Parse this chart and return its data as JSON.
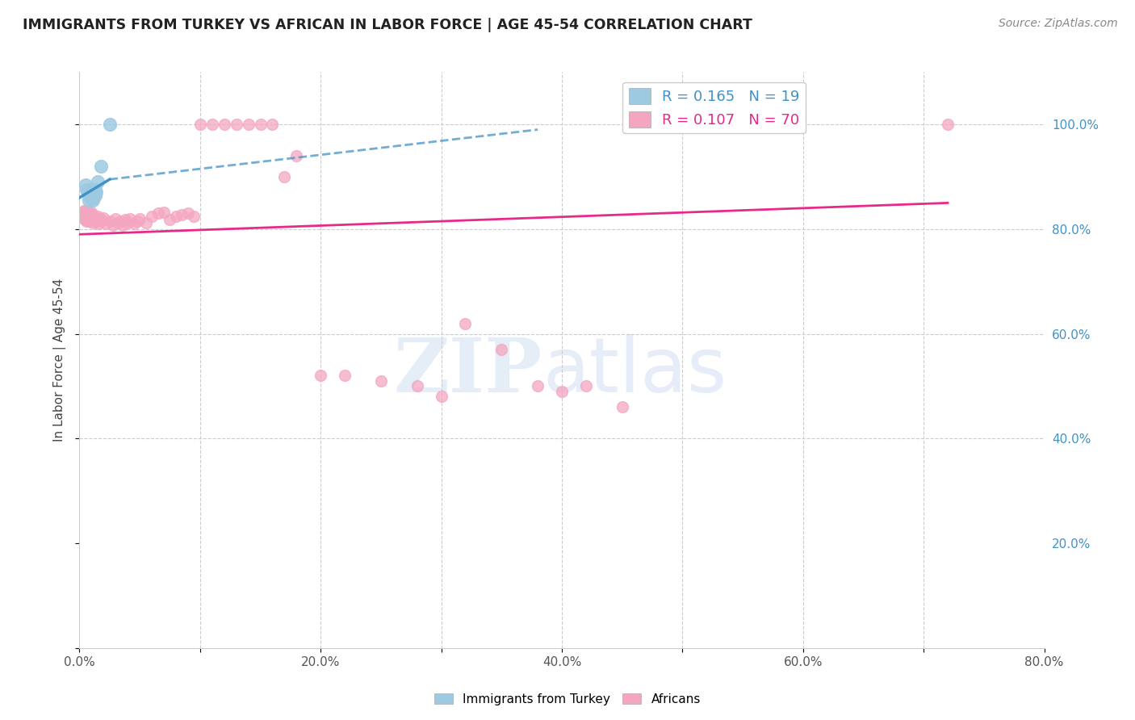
{
  "title": "IMMIGRANTS FROM TURKEY VS AFRICAN IN LABOR FORCE | AGE 45-54 CORRELATION CHART",
  "source": "Source: ZipAtlas.com",
  "ylabel": "In Labor Force | Age 45-54",
  "xlim": [
    0.0,
    0.8
  ],
  "ylim": [
    0.0,
    1.1
  ],
  "xtick_vals": [
    0.0,
    0.1,
    0.2,
    0.3,
    0.4,
    0.5,
    0.6,
    0.7,
    0.8
  ],
  "xtick_labels": [
    "0.0%",
    "",
    "20.0%",
    "",
    "40.0%",
    "",
    "60.0%",
    "",
    "80.0%"
  ],
  "ytick_vals": [
    0.0,
    0.2,
    0.4,
    0.6,
    0.8,
    1.0
  ],
  "ytick_labels": [
    "",
    "20.0%",
    "40.0%",
    "60.0%",
    "80.0%",
    "100.0%"
  ],
  "turkey_scatter_x": [
    0.005,
    0.006,
    0.007,
    0.008,
    0.008,
    0.009,
    0.009,
    0.01,
    0.01,
    0.011,
    0.011,
    0.012,
    0.012,
    0.013,
    0.013,
    0.014,
    0.015,
    0.018,
    0.025
  ],
  "turkey_scatter_y": [
    0.885,
    0.875,
    0.87,
    0.865,
    0.855,
    0.875,
    0.86,
    0.875,
    0.865,
    0.87,
    0.855,
    0.87,
    0.86,
    0.875,
    0.865,
    0.87,
    0.89,
    0.92,
    1.0
  ],
  "africa_scatter_x": [
    0.002,
    0.003,
    0.004,
    0.004,
    0.005,
    0.005,
    0.005,
    0.006,
    0.006,
    0.007,
    0.007,
    0.008,
    0.008,
    0.009,
    0.009,
    0.01,
    0.01,
    0.011,
    0.011,
    0.012,
    0.013,
    0.014,
    0.015,
    0.016,
    0.017,
    0.018,
    0.02,
    0.022,
    0.025,
    0.028,
    0.03,
    0.032,
    0.034,
    0.036,
    0.038,
    0.04,
    0.042,
    0.045,
    0.048,
    0.05,
    0.055,
    0.06,
    0.065,
    0.07,
    0.075,
    0.08,
    0.085,
    0.09,
    0.095,
    0.1,
    0.11,
    0.12,
    0.13,
    0.14,
    0.15,
    0.16,
    0.17,
    0.18,
    0.2,
    0.22,
    0.25,
    0.28,
    0.3,
    0.32,
    0.35,
    0.38,
    0.4,
    0.42,
    0.45,
    0.72
  ],
  "africa_scatter_y": [
    0.83,
    0.825,
    0.835,
    0.82,
    0.828,
    0.818,
    0.835,
    0.825,
    0.815,
    0.832,
    0.82,
    0.83,
    0.815,
    0.825,
    0.815,
    0.832,
    0.82,
    0.828,
    0.812,
    0.822,
    0.815,
    0.82,
    0.825,
    0.81,
    0.82,
    0.815,
    0.822,
    0.81,
    0.815,
    0.808,
    0.82,
    0.812,
    0.815,
    0.808,
    0.818,
    0.812,
    0.82,
    0.81,
    0.815,
    0.82,
    0.812,
    0.825,
    0.83,
    0.832,
    0.818,
    0.825,
    0.828,
    0.83,
    0.825,
    1.0,
    1.0,
    1.0,
    1.0,
    1.0,
    1.0,
    1.0,
    0.9,
    0.94,
    0.52,
    0.52,
    0.51,
    0.5,
    0.48,
    0.62,
    0.57,
    0.5,
    0.49,
    0.5,
    0.46,
    1.0
  ],
  "turkey_trend_x0": 0.0,
  "turkey_trend_y0": 0.86,
  "turkey_trend_x1": 0.025,
  "turkey_trend_y1": 0.895,
  "turkey_trend_ext_x1": 0.38,
  "turkey_trend_ext_y1": 0.99,
  "africa_trend_x0": 0.0,
  "africa_trend_y0": 0.79,
  "africa_trend_x1": 0.72,
  "africa_trend_y1": 0.85,
  "turkey_color": "#4292c6",
  "turkey_scatter_color": "#9ecae1",
  "africa_color": "#e7298a",
  "africa_scatter_color": "#f4a6c0",
  "grid_color": "#cccccc",
  "background_color": "#ffffff",
  "legend_r_turkey": "R = 0.165",
  "legend_n_turkey": "N = 19",
  "legend_r_africa": "R = 0.107",
  "legend_n_africa": "N = 70",
  "legend_label_turkey": "Immigrants from Turkey",
  "legend_label_africa": "Africans"
}
